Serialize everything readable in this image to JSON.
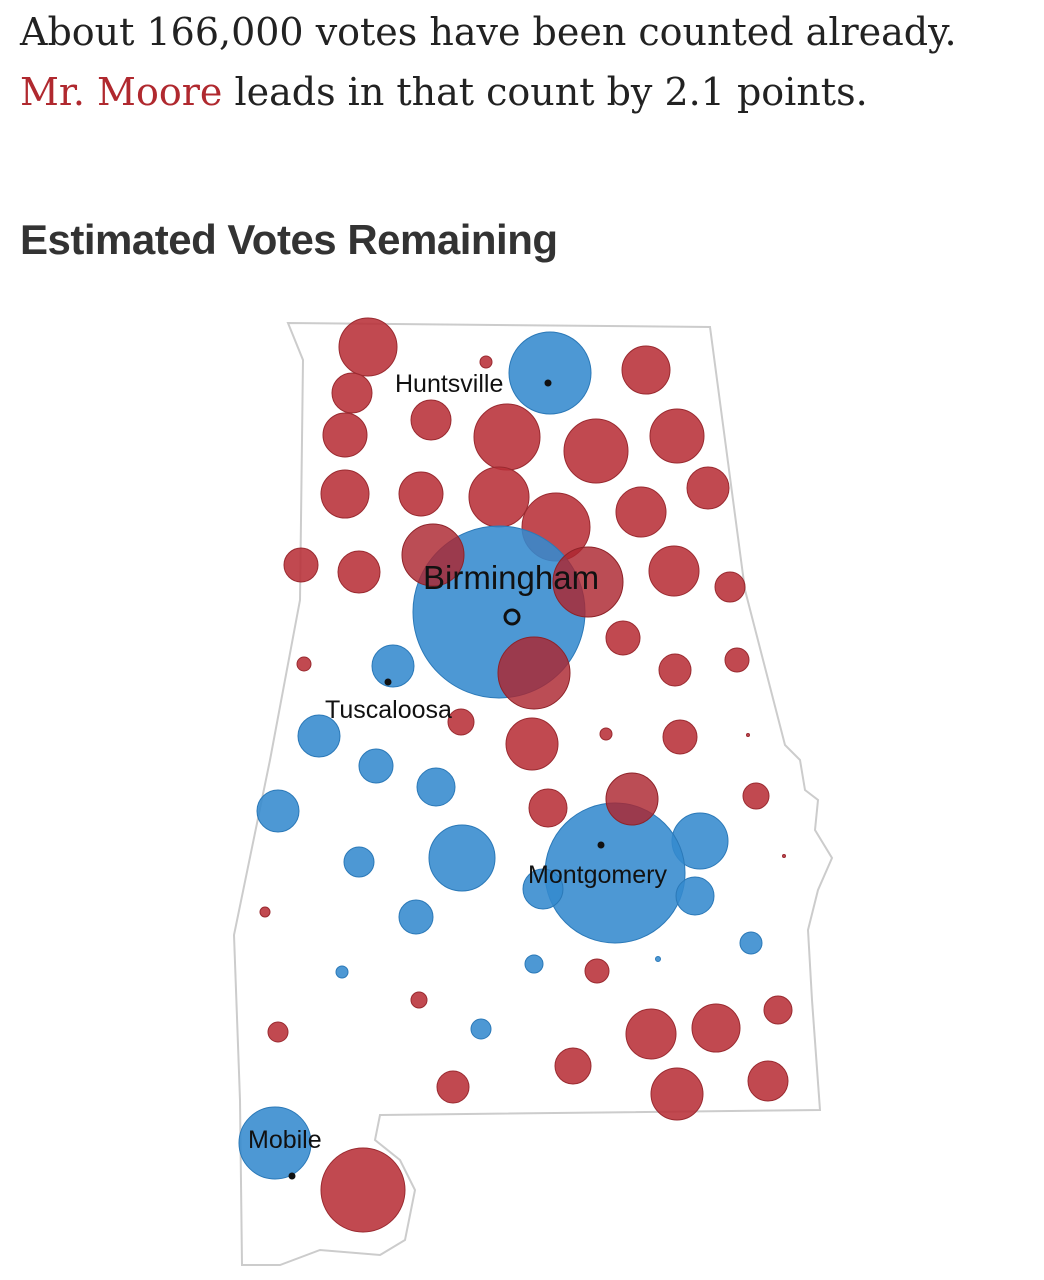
{
  "header": {
    "line1": "About 166,000 votes have been counted already.",
    "highlight": "Mr. Moore",
    "line2": " leads in that count by 2.1 points."
  },
  "title": "Estimated Votes Remaining",
  "cities": [
    "Huntsville",
    "Birmingham",
    "Tuscaloosa",
    "Montgomery",
    "Mobile"
  ]
}
